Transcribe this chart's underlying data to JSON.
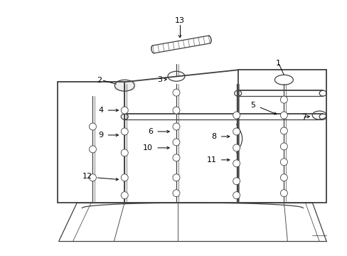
{
  "background_color": "#ffffff",
  "line_color": "#404040",
  "text_color": "#000000",
  "figsize": [
    4.89,
    3.6
  ],
  "dpi": 100,
  "label_fontsize": 8.0
}
